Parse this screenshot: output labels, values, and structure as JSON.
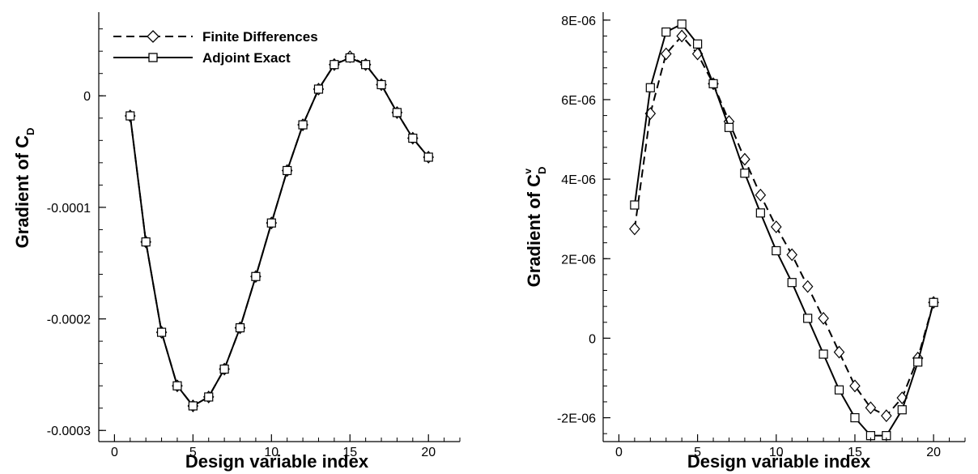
{
  "chart_data": [
    {
      "type": "line",
      "xlabel": "Design variable index",
      "ylabel_main": "Gradient of C",
      "ylabel_sub": "D",
      "ylabel_sup": "",
      "xlim": [
        -1,
        22
      ],
      "ylim": [
        -0.00031,
        7.5e-05
      ],
      "xticks": [
        0,
        5,
        10,
        15,
        20
      ],
      "yticks": [
        0,
        -0.0001,
        -0.0002,
        -0.0003
      ],
      "ytick_labels": [
        "0",
        "-0.0001",
        "-0.0002",
        "-0.0003"
      ],
      "grid": false,
      "legend": {
        "placement": "top-left"
      },
      "x": [
        1,
        2,
        3,
        4,
        5,
        6,
        7,
        8,
        9,
        10,
        11,
        12,
        13,
        14,
        15,
        16,
        17,
        18,
        19,
        20
      ],
      "series": [
        {
          "name": "Finite Differences",
          "line_style": "dashed",
          "marker": "diamond",
          "values": [
            -1.8e-05,
            -0.000131,
            -0.000212,
            -0.00026,
            -0.000278,
            -0.00027,
            -0.000245,
            -0.000208,
            -0.000162,
            -0.000114,
            -6.7e-05,
            -2.6e-05,
            6e-06,
            2.8e-05,
            3.5e-05,
            2.8e-05,
            1e-05,
            -1.5e-05,
            -3.8e-05,
            -5.5e-05
          ]
        },
        {
          "name": "Adjoint Exact",
          "line_style": "solid",
          "marker": "square",
          "values": [
            -1.8e-05,
            -0.000131,
            -0.000212,
            -0.00026,
            -0.000278,
            -0.00027,
            -0.000245,
            -0.000208,
            -0.000162,
            -0.000114,
            -6.7e-05,
            -2.6e-05,
            6e-06,
            2.8e-05,
            3.4e-05,
            2.8e-05,
            1e-05,
            -1.5e-05,
            -3.8e-05,
            -5.5e-05
          ]
        }
      ]
    },
    {
      "type": "line",
      "xlabel": "Design variable index",
      "ylabel_main": "Gradient of C",
      "ylabel_sub": "D",
      "ylabel_sup": "v",
      "xlim": [
        -1,
        22
      ],
      "ylim": [
        -2.6e-06,
        8.2e-06
      ],
      "xticks": [
        0,
        5,
        10,
        15,
        20
      ],
      "yticks": [
        8e-06,
        6e-06,
        4e-06,
        2e-06,
        0,
        -2e-06
      ],
      "ytick_labels": [
        "8E-06",
        "6E-06",
        "4E-06",
        "2E-06",
        "0",
        "-2E-06"
      ],
      "grid": false,
      "x": [
        1,
        2,
        3,
        4,
        5,
        6,
        7,
        8,
        9,
        10,
        11,
        12,
        13,
        14,
        15,
        16,
        17,
        18,
        19,
        20
      ],
      "series": [
        {
          "name": "Finite Differences",
          "line_style": "dashed",
          "marker": "diamond",
          "values": [
            2.75e-06,
            5.65e-06,
            7.15e-06,
            7.6e-06,
            7.15e-06,
            6.4e-06,
            5.45e-06,
            4.5e-06,
            3.6e-06,
            2.8e-06,
            2.1e-06,
            1.3e-06,
            5e-07,
            -3.5e-07,
            -1.2e-06,
            -1.75e-06,
            -1.95e-06,
            -1.5e-06,
            -5e-07,
            9e-07
          ]
        },
        {
          "name": "Adjoint Exact",
          "line_style": "solid",
          "marker": "square",
          "values": [
            3.35e-06,
            6.3e-06,
            7.7e-06,
            7.9e-06,
            7.4e-06,
            6.4e-06,
            5.3e-06,
            4.15e-06,
            3.15e-06,
            2.2e-06,
            1.4e-06,
            5e-07,
            -4e-07,
            -1.3e-06,
            -2e-06,
            -2.45e-06,
            -2.45e-06,
            -1.8e-06,
            -6e-07,
            9e-07
          ]
        }
      ]
    }
  ]
}
